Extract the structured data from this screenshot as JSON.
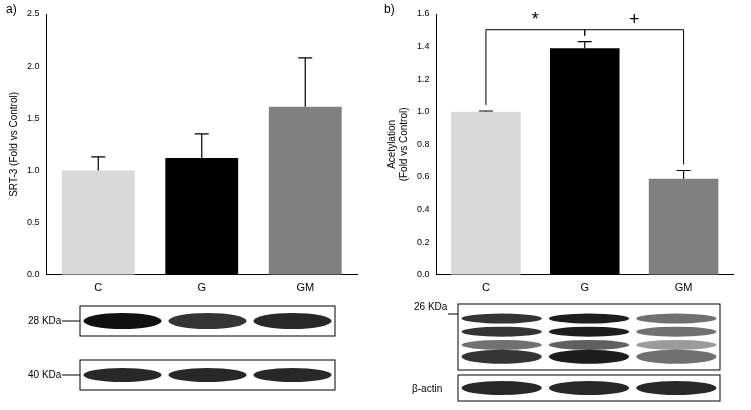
{
  "chart_data": [
    {
      "type": "bar",
      "panel_label": "a)",
      "y_label": "SRT-3 (Fold vs Control)",
      "categories": [
        "C",
        "G",
        "GM"
      ],
      "values": [
        1.0,
        1.12,
        1.61
      ],
      "errors": [
        0.13,
        0.23,
        0.47
      ],
      "colors": [
        "#d9d9d9",
        "#000000",
        "#808080"
      ],
      "ylim": [
        0,
        2.5
      ],
      "yticks": [
        {
          "value": 0,
          "label": "0.0"
        },
        {
          "value": 0.5,
          "label": "0.5"
        },
        {
          "value": 1,
          "label": "1.0"
        },
        {
          "value": 1.5,
          "label": "1.5"
        },
        {
          "value": 2,
          "label": "2.0"
        },
        {
          "value": 2.5,
          "label": "2.5"
        }
      ],
      "grid": false,
      "blot_labels": [
        "28 KDa",
        "40 KDa"
      ]
    },
    {
      "type": "bar",
      "panel_label": "b)",
      "y_label": [
        "Acetylation",
        "(Fold vs Control)"
      ],
      "categories": [
        "C",
        "G",
        "GM"
      ],
      "values": [
        1.0,
        1.39,
        0.59
      ],
      "errors": [
        0.005,
        0.04,
        0.05
      ],
      "colors": [
        "#d9d9d9",
        "#000000",
        "#808080"
      ],
      "ylim": [
        0,
        1.6
      ],
      "yticks": [
        {
          "value": 0,
          "label": "0.0"
        },
        {
          "value": 0.2,
          "label": "0.2"
        },
        {
          "value": 0.4,
          "label": "0.4"
        },
        {
          "value": 0.6,
          "label": "0.6"
        },
        {
          "value": 0.8,
          "label": "0.8"
        },
        {
          "value": 1,
          "label": "1.0"
        },
        {
          "value": 1.2,
          "label": "1.2"
        },
        {
          "value": 1.4,
          "label": "1.4"
        },
        {
          "value": 1.6,
          "label": "1.6"
        }
      ],
      "grid": false,
      "annotations": [
        {
          "text": "*",
          "from": "C",
          "to": "G"
        },
        {
          "text": "+",
          "from": "G",
          "to": "GM"
        }
      ],
      "blot_labels": [
        "26 KDa",
        "β-actin"
      ]
    }
  ]
}
